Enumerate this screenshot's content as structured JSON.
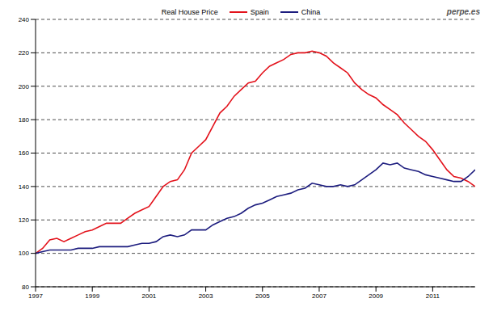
{
  "chart_data": {
    "type": "line",
    "title": "Real House Price",
    "annotations": [
      "perpe.es"
    ],
    "legend": "top",
    "grid": true,
    "x": [
      1997,
      1997.25,
      1997.5,
      1997.75,
      1998,
      1998.25,
      1998.5,
      1998.75,
      1999,
      1999.25,
      1999.5,
      1999.75,
      2000,
      2000.25,
      2000.5,
      2000.75,
      2001,
      2001.25,
      2001.5,
      2001.75,
      2002,
      2002.25,
      2002.5,
      2002.75,
      2003,
      2003.25,
      2003.5,
      2003.75,
      2004,
      2004.25,
      2004.5,
      2004.75,
      2005,
      2005.25,
      2005.5,
      2005.75,
      2006,
      2006.25,
      2006.5,
      2006.75,
      2007,
      2007.25,
      2007.5,
      2007.75,
      2008,
      2008.25,
      2008.5,
      2008.75,
      2009,
      2009.25,
      2009.5,
      2009.75,
      2010,
      2010.25,
      2010.5,
      2010.75,
      2011,
      2011.25,
      2011.5,
      2011.75,
      2012,
      2012.25,
      2012.5
    ],
    "xlim": [
      1997,
      2012.5
    ],
    "xticks": [
      1997,
      1999,
      2001,
      2003,
      2005,
      2007,
      2009,
      2011
    ],
    "ylim": [
      80,
      240
    ],
    "yticks": [
      80,
      100,
      120,
      140,
      160,
      180,
      200,
      220,
      240
    ],
    "series": [
      {
        "name": "Spain",
        "color": "#e3121b",
        "values": [
          100,
          103,
          108,
          109,
          107,
          109,
          111,
          113,
          114,
          116,
          118,
          118,
          118,
          121,
          124,
          126,
          128,
          134,
          140,
          143,
          144,
          150,
          160,
          164,
          168,
          176,
          184,
          188,
          194,
          198,
          202,
          203,
          208,
          212,
          214,
          216,
          219,
          220,
          220,
          221,
          220,
          218,
          214,
          211,
          208,
          202,
          198,
          195,
          193,
          189,
          186,
          183,
          178,
          174,
          170,
          167,
          162,
          156,
          150,
          146,
          145,
          143,
          140
        ]
      },
      {
        "name": "China",
        "color": "#1c1c7e",
        "values": [
          100,
          101,
          102,
          102,
          102,
          102,
          103,
          103,
          103,
          104,
          104,
          104,
          104,
          104,
          105,
          106,
          106,
          107,
          110,
          111,
          110,
          111,
          114,
          114,
          114,
          117,
          119,
          121,
          122,
          124,
          127,
          129,
          130,
          132,
          134,
          135,
          136,
          138,
          139,
          142,
          141,
          140,
          140,
          141,
          140,
          141,
          144,
          147,
          150,
          154,
          153,
          154,
          151,
          150,
          149,
          147,
          146,
          145,
          144,
          143,
          143,
          146,
          150
        ]
      }
    ]
  }
}
